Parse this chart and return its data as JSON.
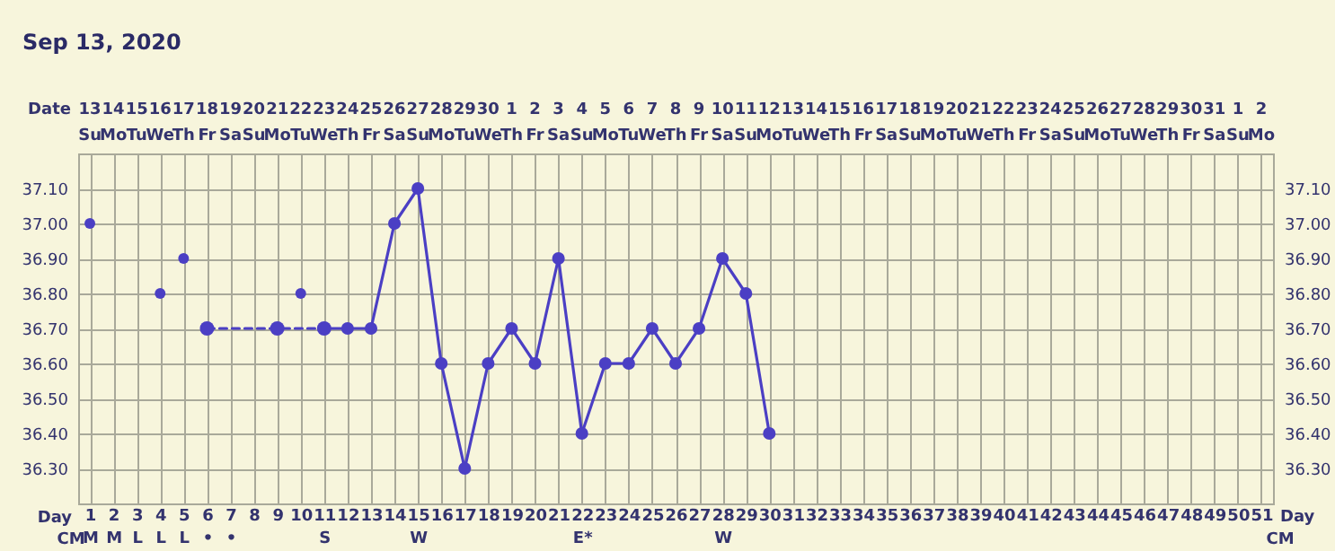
{
  "chart_data": {
    "type": "line",
    "title": "Sep 13, 2020",
    "xlabel": "Day",
    "x2label": "Date",
    "annotations": [
      "CM"
    ],
    "xlim": [
      0.5,
      51.5
    ],
    "xticks": [
      {
        "value": 1,
        "label": "1\nM"
      },
      {
        "value": 2,
        "label": "2\nM"
      },
      {
        "value": 3,
        "label": "3\nL"
      },
      {
        "value": 4,
        "label": "4\nL"
      },
      {
        "value": 5,
        "label": "5\nL"
      },
      {
        "value": 6,
        "label": "6\n•"
      },
      {
        "value": 7,
        "label": "7\n•"
      },
      8,
      9,
      10,
      {
        "value": 11,
        "label": "11\nS"
      },
      12,
      13,
      14,
      {
        "value": 15,
        "label": "15\nW"
      },
      16,
      17,
      18,
      19,
      20,
      21,
      {
        "value": 22,
        "label": "22\nE*"
      },
      23,
      24,
      25,
      26,
      27,
      {
        "value": 28,
        "label": "28\nW"
      },
      29,
      30,
      31,
      32,
      33,
      34,
      35,
      36,
      37,
      38,
      39,
      40,
      41,
      42,
      43,
      44,
      45,
      46,
      47,
      48,
      49,
      50,
      51
    ],
    "x2lim": [
      "2020-09-12T12:00",
      "2020-11-02T12:00"
    ],
    "x2ticks": [
      {
        "value": "2020-09-13",
        "label": "13\nSu"
      },
      {
        "value": "2020-09-14",
        "label": "14\nMo"
      },
      {
        "value": "2020-09-15",
        "label": "15\nTu"
      },
      {
        "value": "2020-09-16",
        "label": "16\nWe"
      },
      {
        "value": "2020-09-17",
        "label": "17\nTh"
      },
      {
        "value": "2020-09-18",
        "label": "18\nFr"
      },
      {
        "value": "2020-09-19",
        "label": "19\nSa"
      },
      {
        "value": "2020-09-20",
        "label": "20\nSu"
      },
      {
        "value": "2020-09-21",
        "label": "21\nMo"
      },
      {
        "value": "2020-09-22",
        "label": "22\nTu"
      },
      {
        "value": "2020-09-23",
        "label": "23\nWe"
      },
      {
        "value": "2020-09-24",
        "label": "24\nTh"
      },
      {
        "value": "2020-09-25",
        "label": "25\nFr"
      },
      {
        "value": "2020-09-26",
        "label": "26\nSa"
      },
      {
        "value": "2020-09-27",
        "label": "27\nSu"
      },
      {
        "value": "2020-09-28",
        "label": "28\nMo"
      },
      {
        "value": "2020-09-29",
        "label": "29\nTu"
      },
      {
        "value": "2020-09-30",
        "label": "30\nWe"
      },
      {
        "value": "2020-10-01",
        "label": "1\nTh"
      },
      {
        "value": "2020-10-02",
        "label": "2\nFr"
      },
      {
        "value": "2020-10-03",
        "label": "3\nSa"
      },
      {
        "value": "2020-10-04",
        "label": "4\nSu"
      },
      {
        "value": "2020-10-05",
        "label": "5\nMo"
      },
      {
        "value": "2020-10-06",
        "label": "6\nTu"
      },
      {
        "value": "2020-10-07",
        "label": "7\nWe"
      },
      {
        "value": "2020-10-08",
        "label": "8\nTh"
      },
      {
        "value": "2020-10-09",
        "label": "9\nFr"
      },
      {
        "value": "2020-10-10",
        "label": "10\nSa"
      },
      {
        "value": "2020-10-11",
        "label": "11\nSu"
      },
      {
        "value": "2020-10-12",
        "label": "12\nMo"
      },
      {
        "value": "2020-10-13",
        "label": "13\nTu"
      },
      {
        "value": "2020-10-14",
        "label": "14\nWe"
      },
      {
        "value": "2020-10-15",
        "label": "15\nTh"
      },
      {
        "value": "2020-10-16",
        "label": "16\nFr"
      },
      {
        "value": "2020-10-17",
        "label": "17\nSa"
      },
      {
        "value": "2020-10-18",
        "label": "18\nSu"
      },
      {
        "value": "2020-10-19",
        "label": "19\nMo"
      },
      {
        "value": "2020-10-20",
        "label": "20\nTu"
      },
      {
        "value": "2020-10-21",
        "label": "21\nWe"
      },
      {
        "value": "2020-10-22",
        "label": "22\nTh"
      },
      {
        "value": "2020-10-23",
        "label": "23\nFr"
      },
      {
        "value": "2020-10-24",
        "label": "24\nSa"
      },
      {
        "value": "2020-10-25",
        "label": "25\nSu"
      },
      {
        "value": "2020-10-26",
        "label": "26\nMo"
      },
      {
        "value": "2020-10-27",
        "label": "27\nTu"
      },
      {
        "value": "2020-10-28",
        "label": "28\nWe"
      },
      {
        "value": "2020-10-29",
        "label": "29\nTh"
      },
      {
        "value": "2020-10-30",
        "label": "30\nFr"
      },
      {
        "value": "2020-10-31",
        "label": "31\nSa"
      },
      {
        "value": "2020-11-01",
        "label": "1\nSu"
      },
      {
        "value": "2020-11-02",
        "label": "2\nMo"
      }
    ],
    "ylim": [
      36.2,
      37.2
    ],
    "yticks": [
      {
        "value": 36.3,
        "label": "36.30"
      },
      {
        "value": 36.4,
        "label": "36.40"
      },
      {
        "value": 36.5,
        "label": "36.50"
      },
      {
        "value": 36.6,
        "label": "36.60"
      },
      {
        "value": 36.7,
        "label": "36.70"
      },
      {
        "value": 36.8,
        "label": "36.80"
      },
      {
        "value": 36.9,
        "label": "36.90"
      },
      {
        "value": 37.0,
        "label": "37.00"
      },
      {
        "value": 37.1,
        "label": "37.10"
      }
    ],
    "y2lim": [
      36.2,
      37.2
    ],
    "y2ticks": [
      {
        "value": 36.3,
        "label": "36.30"
      },
      {
        "value": 36.4,
        "label": "36.40"
      },
      {
        "value": 36.5,
        "label": "36.50"
      },
      {
        "value": 36.6,
        "label": "36.60"
      },
      {
        "value": 36.7,
        "label": "36.70"
      },
      {
        "value": 36.8,
        "label": "36.80"
      },
      {
        "value": 36.9,
        "label": "36.90"
      },
      {
        "value": 37.0,
        "label": "37.00"
      },
      {
        "value": 37.1,
        "label": "37.10"
      }
    ],
    "grid": true,
    "series": [
      {
        "line_style": "dashed",
        "marker": "circle",
        "color": "#4b3fc4",
        "x": [
          6,
          9,
          11
        ],
        "values": [
          36.7,
          36.7,
          36.7
        ]
      },
      {
        "line_style": "solid",
        "marker": "circle",
        "color": "#4b3fc4",
        "x": [
          11,
          12,
          13,
          14,
          15,
          16,
          17,
          18,
          19,
          20,
          21,
          22,
          23,
          24,
          25,
          26,
          27,
          28,
          29,
          30
        ],
        "values": [
          36.7,
          36.7,
          36.7,
          37.0,
          37.1,
          36.6,
          36.3,
          36.6,
          36.7,
          36.6,
          36.9,
          36.4,
          36.6,
          36.6,
          36.7,
          36.6,
          36.7,
          36.9,
          36.8,
          36.4
        ]
      },
      {
        "type": "scatter",
        "marker": "circle",
        "color": "#4b3fc4",
        "x": [
          1,
          4,
          5,
          10
        ],
        "values": [
          37.0,
          36.8,
          36.9,
          36.8
        ]
      }
    ]
  }
}
